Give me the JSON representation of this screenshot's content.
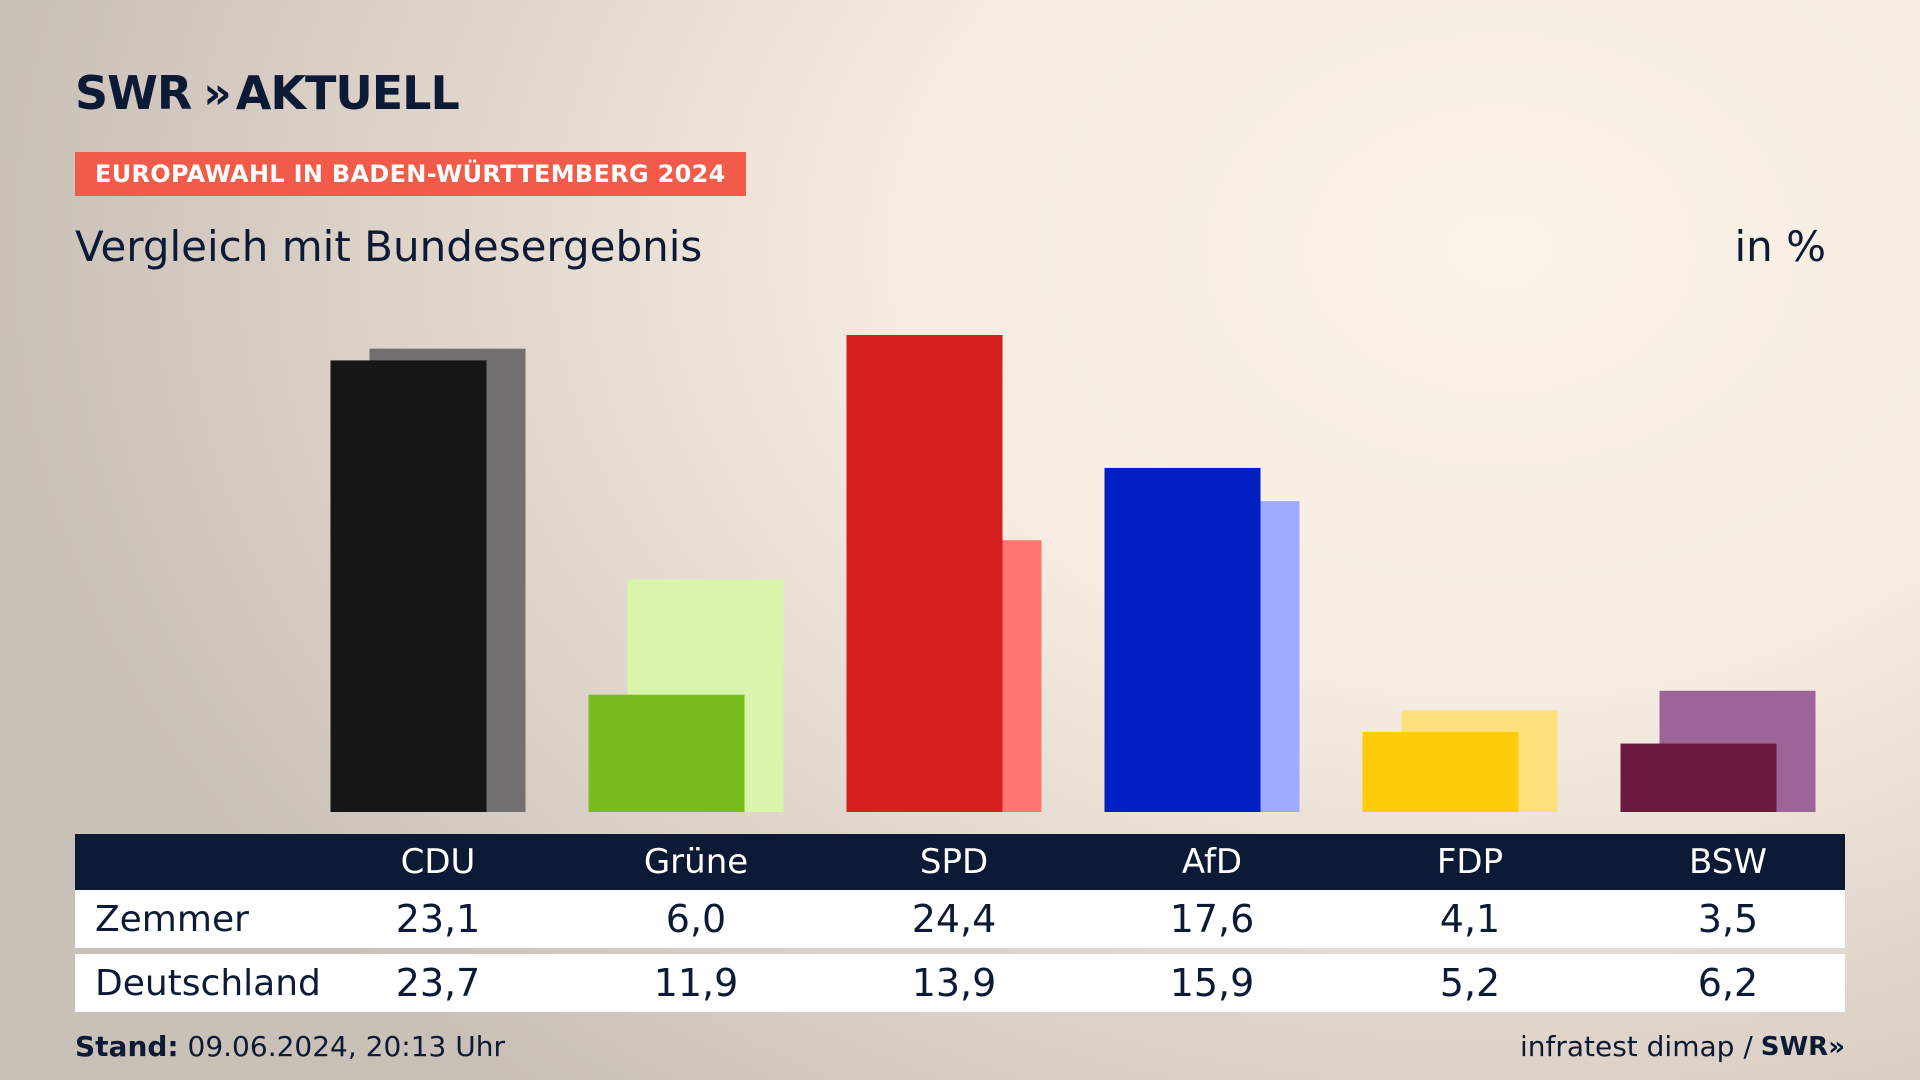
{
  "brand": {
    "logo_left": "SWR",
    "logo_chevrons": "»",
    "logo_right": "AKTUELL"
  },
  "kicker": "EUROPAWAHL IN BADEN-WÜRTTEMBERG 2024",
  "headline": "Vergleich mit Bundesergebnis",
  "unit": "in %",
  "table": {
    "rows": [
      {
        "label": "Zemmer",
        "values": [
          "23,1",
          "6,0",
          "24,4",
          "17,6",
          "4,1",
          "3,5"
        ]
      },
      {
        "label": "Deutschland",
        "values": [
          "23,7",
          "11,9",
          "13,9",
          "15,9",
          "5,2",
          "6,2"
        ]
      }
    ]
  },
  "footer": {
    "stand_label": "Stand:",
    "stand_value": "09.06.2024, 20:13 Uhr",
    "source": "infratest dimap /",
    "source_logo": "SWR»"
  },
  "chart_data": {
    "type": "bar",
    "categories": [
      "CDU",
      "Grüne",
      "SPD",
      "AfD",
      "FDP",
      "BSW"
    ],
    "series": [
      {
        "name": "Zemmer",
        "values": [
          23.1,
          6.0,
          24.4,
          17.6,
          4.1,
          3.5
        ],
        "colors": [
          "#161616",
          "#79bc1d",
          "#d61f1f",
          "#0020c4",
          "#ffcc0a",
          "#6b1a3f"
        ]
      },
      {
        "name": "Deutschland",
        "values": [
          23.7,
          11.9,
          13.9,
          15.9,
          5.2,
          6.2
        ],
        "colors": [
          "#727070",
          "#d8f5ab",
          "#ff7670",
          "#9eaaff",
          "#fee17a",
          "#9c6499"
        ]
      }
    ],
    "ylim": [
      0,
      26
    ],
    "grid": false,
    "legend": "table-below"
  }
}
